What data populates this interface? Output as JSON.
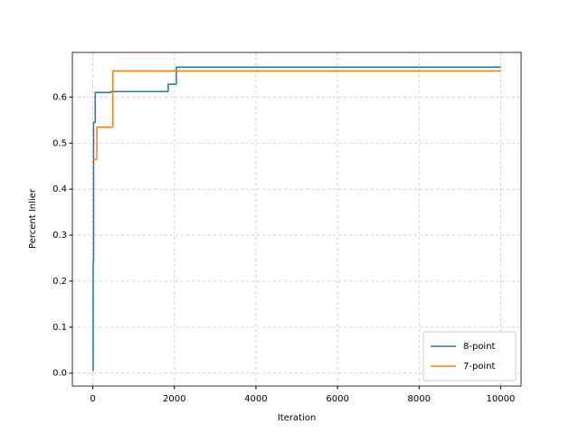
{
  "chart_data": {
    "type": "step",
    "x_label": "Iteration",
    "y_label": "Percent Inlier",
    "series": [
      {
        "name": "8-point",
        "color": "#1f77b4",
        "x": [
          0,
          10,
          20,
          60,
          450,
          1850,
          2050,
          10000
        ],
        "values": [
          0.005,
          0.24,
          0.545,
          0.61,
          0.612,
          0.628,
          0.665,
          0.665
        ]
      },
      {
        "name": "7-point",
        "color": "#ff7f0e",
        "x": [
          0,
          100,
          490,
          10000
        ],
        "values": [
          0.465,
          0.535,
          0.657,
          0.657
        ]
      }
    ],
    "xlim": [
      -500,
      10500
    ],
    "xticks": [
      0,
      2000,
      4000,
      6000,
      8000,
      10000
    ],
    "ylim": [
      -0.028,
      0.697
    ],
    "yticks": [
      {
        "value": 0,
        "label": "0.0"
      },
      0.1,
      0.2,
      0.3,
      0.4,
      0.5,
      0.6
    ],
    "grid": true,
    "legend": "lower-right"
  }
}
